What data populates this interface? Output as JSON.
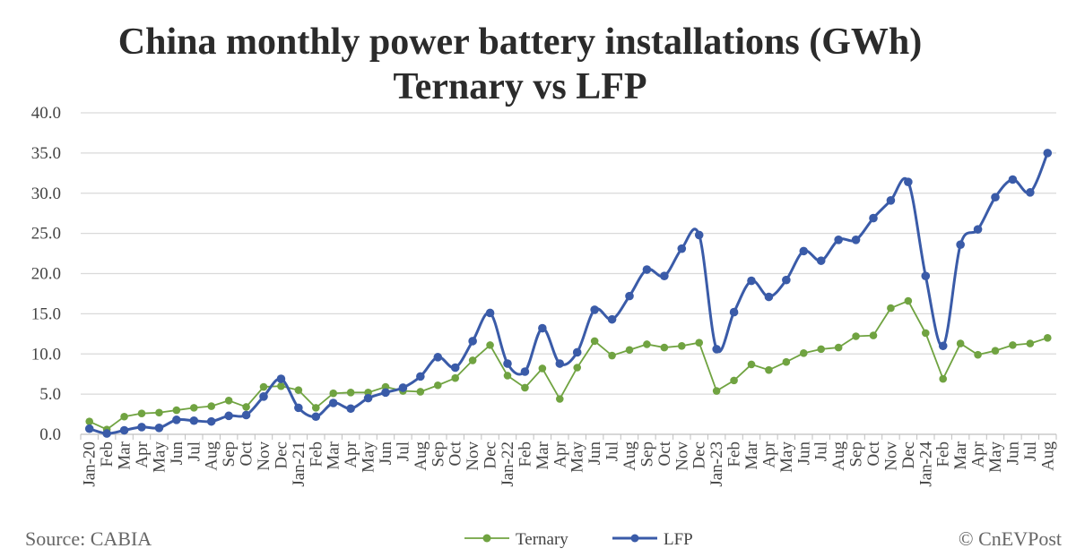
{
  "chart_data": {
    "type": "line",
    "title": "China monthly power battery installations (GWh)",
    "subtitle": "Ternary vs LFP",
    "xlabel": "",
    "ylabel": "",
    "ylim": [
      0,
      40
    ],
    "yticks": [
      "0.0",
      "5.0",
      "10.0",
      "15.0",
      "20.0",
      "25.0",
      "30.0",
      "35.0",
      "40.0"
    ],
    "grid": true,
    "legend_position": "bottom",
    "categories": [
      "Jan-20",
      "Feb",
      "Mar",
      "Apr",
      "May",
      "Jun",
      "Jul",
      "Aug",
      "Sep",
      "Oct",
      "Nov",
      "Dec",
      "Jan-21",
      "Feb",
      "Mar",
      "Apr",
      "May",
      "Jun",
      "Jul",
      "Aug",
      "Sep",
      "Oct",
      "Nov",
      "Dec",
      "Jan-22",
      "Feb",
      "Mar",
      "Apr",
      "May",
      "Jun",
      "Jul",
      "Aug",
      "Sep",
      "Oct",
      "Nov",
      "Dec",
      "Jan-23",
      "Feb",
      "Mar",
      "Apr",
      "May",
      "Jun",
      "Jul",
      "Aug",
      "Sep",
      "Oct",
      "Nov",
      "Dec",
      "Jan-24",
      "Feb",
      "Mar",
      "Apr",
      "May",
      "Jun",
      "Jul",
      "Aug"
    ],
    "series": [
      {
        "name": "Ternary",
        "color": "#70a341",
        "smooth": false,
        "values": [
          1.6,
          0.6,
          2.2,
          2.6,
          2.7,
          3.0,
          3.3,
          3.5,
          4.2,
          3.4,
          5.9,
          6.0,
          5.5,
          3.3,
          5.1,
          5.2,
          5.2,
          5.9,
          5.4,
          5.3,
          6.1,
          7.0,
          9.2,
          11.1,
          7.3,
          5.8,
          8.2,
          4.4,
          8.3,
          11.6,
          9.8,
          10.5,
          11.2,
          10.8,
          11.0,
          11.4,
          5.4,
          6.7,
          8.7,
          8.0,
          9.0,
          10.1,
          10.6,
          10.8,
          12.2,
          12.3,
          15.7,
          16.6,
          12.6,
          6.9,
          11.3,
          9.9,
          10.4,
          11.1,
          11.3,
          12.0
        ]
      },
      {
        "name": "LFP",
        "color": "#3a5ba8",
        "smooth": true,
        "values": [
          0.7,
          0.1,
          0.5,
          0.9,
          0.8,
          1.8,
          1.7,
          1.6,
          2.3,
          2.4,
          4.7,
          6.9,
          3.3,
          2.2,
          3.9,
          3.2,
          4.5,
          5.2,
          5.8,
          7.2,
          9.6,
          8.3,
          11.6,
          15.1,
          8.8,
          7.8,
          13.2,
          8.8,
          10.2,
          15.5,
          14.3,
          17.2,
          20.5,
          19.7,
          23.1,
          24.8,
          10.6,
          15.2,
          19.1,
          17.1,
          19.2,
          22.8,
          21.6,
          24.2,
          24.2,
          26.9,
          29.1,
          31.4,
          19.7,
          11.0,
          23.6,
          25.5,
          29.5,
          31.7,
          30.1,
          35.0
        ]
      }
    ]
  },
  "footer": {
    "source": "Source: CABIA",
    "credit": "© CnEVPost"
  }
}
